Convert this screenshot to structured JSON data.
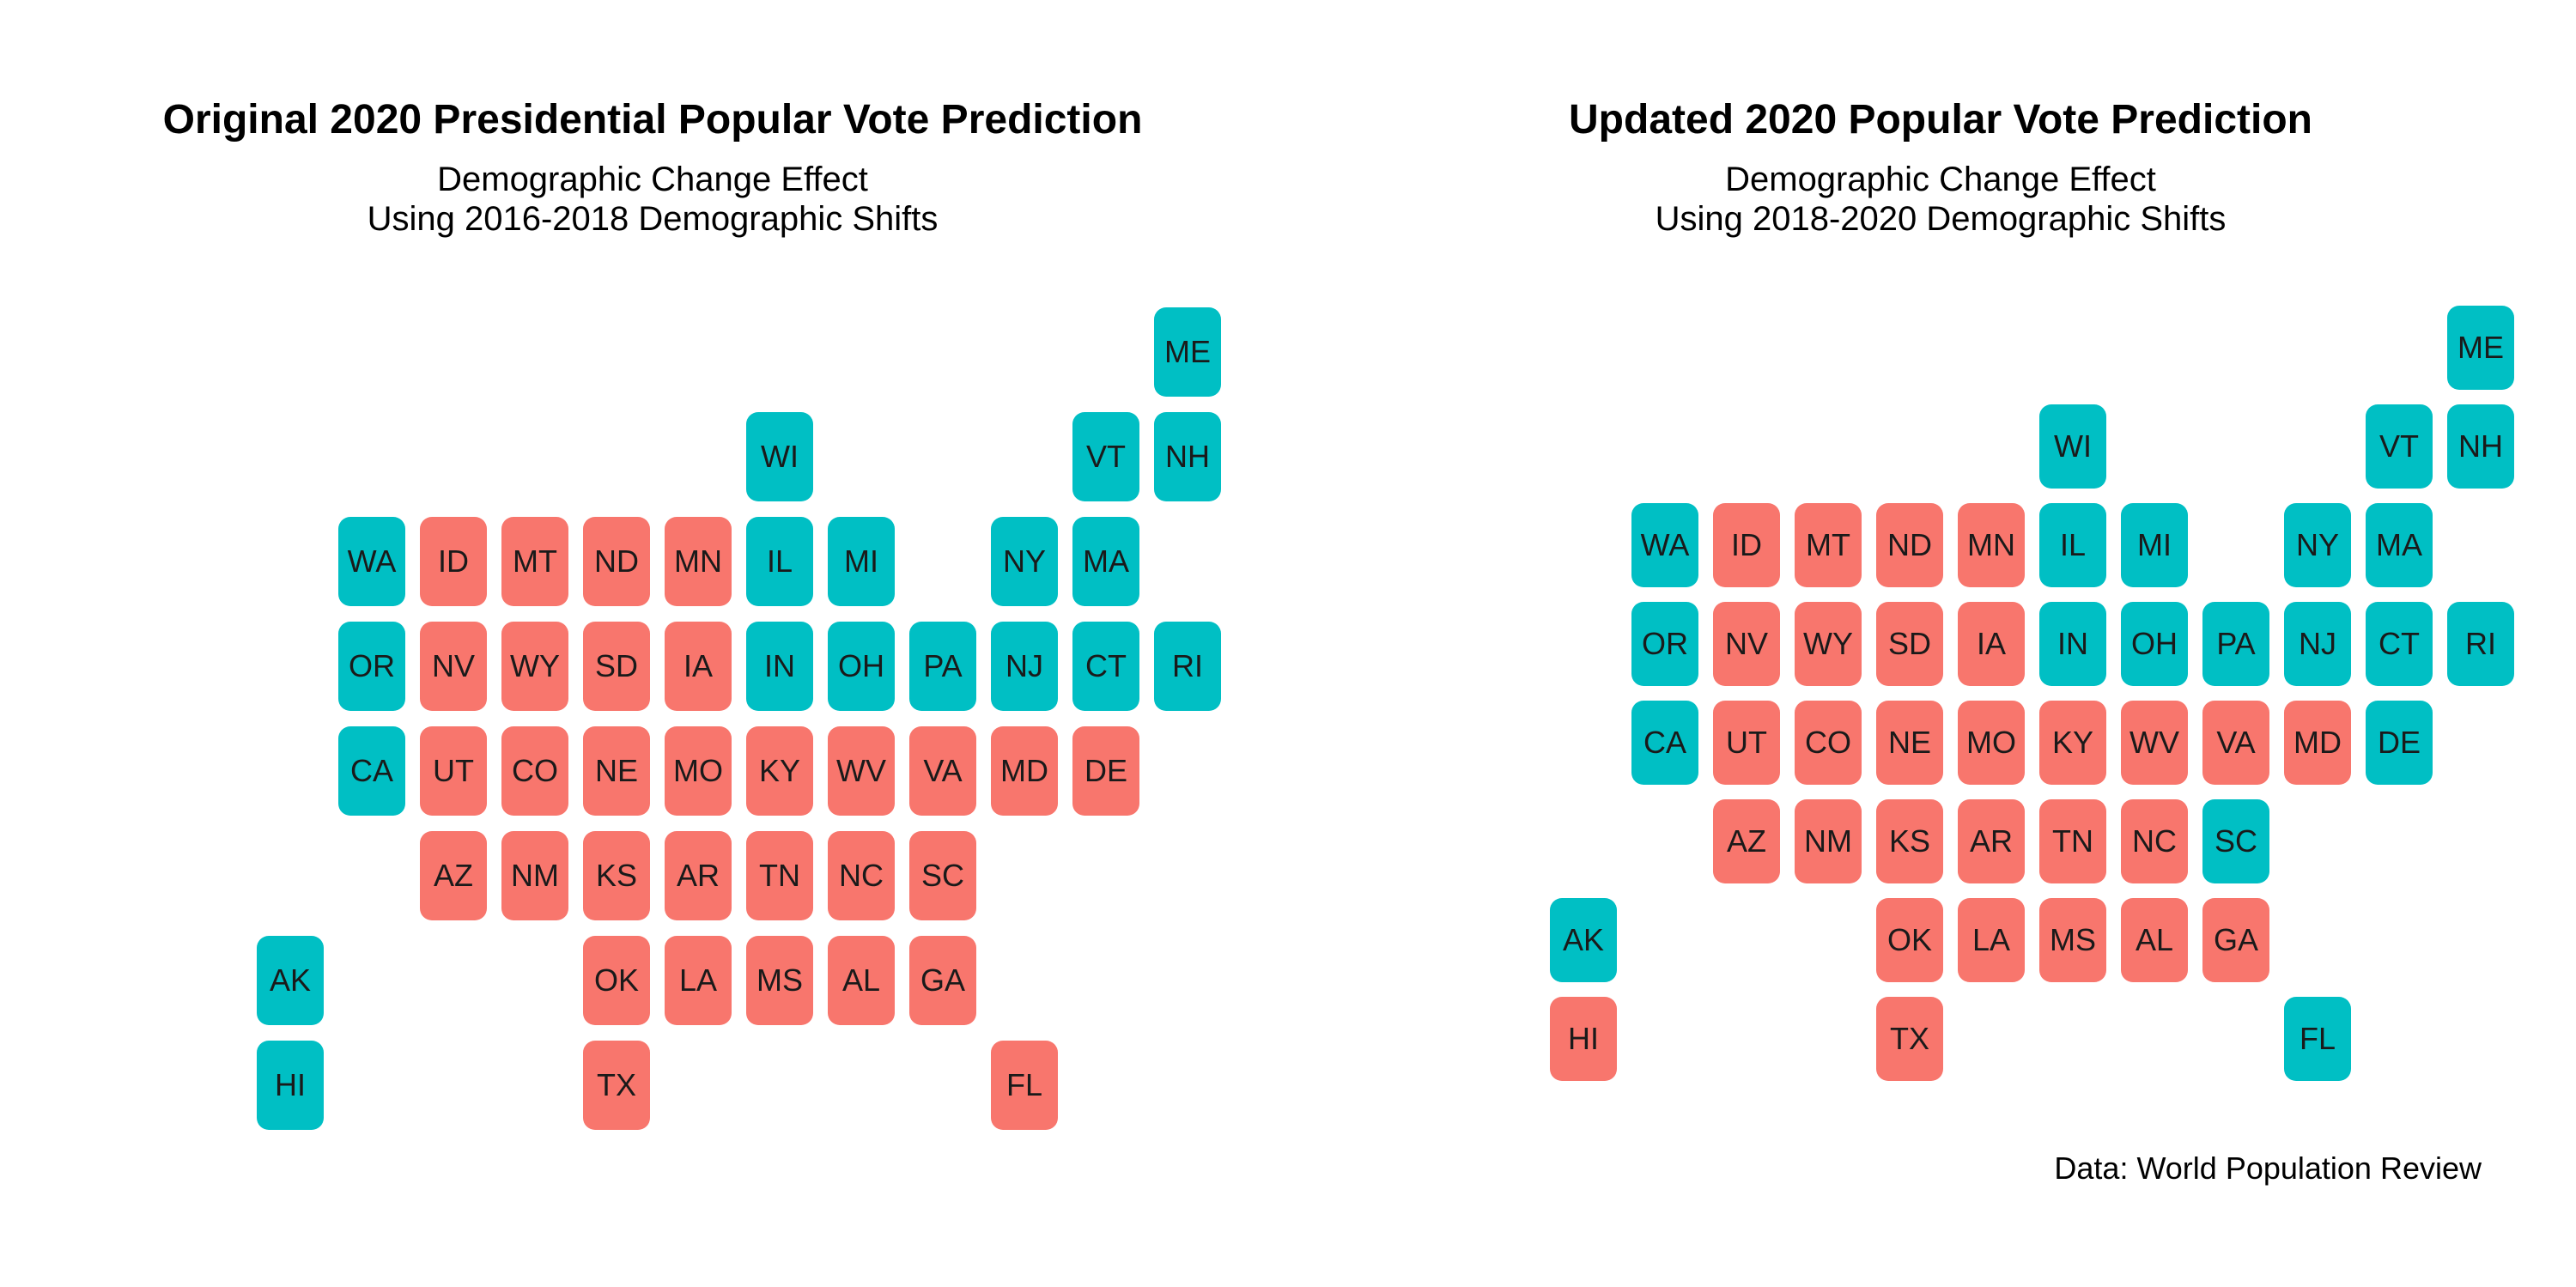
{
  "colors": {
    "red": "#F8766D",
    "teal": "#00BFC4"
  },
  "panels": [
    {
      "title": "Original 2020 Presidential Popular Vote Prediction",
      "subtitle_line1": "Demographic Change Effect",
      "subtitle_line2": "Using 2016-2018 Demographic Shifts",
      "tiles": [
        {
          "state": "ME",
          "col": 12,
          "row": 0,
          "party": "teal"
        },
        {
          "state": "WI",
          "col": 7,
          "row": 1,
          "party": "teal"
        },
        {
          "state": "VT",
          "col": 11,
          "row": 1,
          "party": "teal"
        },
        {
          "state": "NH",
          "col": 12,
          "row": 1,
          "party": "teal"
        },
        {
          "state": "WA",
          "col": 2,
          "row": 2,
          "party": "teal"
        },
        {
          "state": "ID",
          "col": 3,
          "row": 2,
          "party": "red"
        },
        {
          "state": "MT",
          "col": 4,
          "row": 2,
          "party": "red"
        },
        {
          "state": "ND",
          "col": 5,
          "row": 2,
          "party": "red"
        },
        {
          "state": "MN",
          "col": 6,
          "row": 2,
          "party": "red"
        },
        {
          "state": "IL",
          "col": 7,
          "row": 2,
          "party": "teal"
        },
        {
          "state": "MI",
          "col": 8,
          "row": 2,
          "party": "teal"
        },
        {
          "state": "NY",
          "col": 10,
          "row": 2,
          "party": "teal"
        },
        {
          "state": "MA",
          "col": 11,
          "row": 2,
          "party": "teal"
        },
        {
          "state": "OR",
          "col": 2,
          "row": 3,
          "party": "teal"
        },
        {
          "state": "NV",
          "col": 3,
          "row": 3,
          "party": "red"
        },
        {
          "state": "WY",
          "col": 4,
          "row": 3,
          "party": "red"
        },
        {
          "state": "SD",
          "col": 5,
          "row": 3,
          "party": "red"
        },
        {
          "state": "IA",
          "col": 6,
          "row": 3,
          "party": "red"
        },
        {
          "state": "IN",
          "col": 7,
          "row": 3,
          "party": "teal"
        },
        {
          "state": "OH",
          "col": 8,
          "row": 3,
          "party": "teal"
        },
        {
          "state": "PA",
          "col": 9,
          "row": 3,
          "party": "teal"
        },
        {
          "state": "NJ",
          "col": 10,
          "row": 3,
          "party": "teal"
        },
        {
          "state": "CT",
          "col": 11,
          "row": 3,
          "party": "teal"
        },
        {
          "state": "RI",
          "col": 12,
          "row": 3,
          "party": "teal"
        },
        {
          "state": "CA",
          "col": 2,
          "row": 4,
          "party": "teal"
        },
        {
          "state": "UT",
          "col": 3,
          "row": 4,
          "party": "red"
        },
        {
          "state": "CO",
          "col": 4,
          "row": 4,
          "party": "red"
        },
        {
          "state": "NE",
          "col": 5,
          "row": 4,
          "party": "red"
        },
        {
          "state": "MO",
          "col": 6,
          "row": 4,
          "party": "red"
        },
        {
          "state": "KY",
          "col": 7,
          "row": 4,
          "party": "red"
        },
        {
          "state": "WV",
          "col": 8,
          "row": 4,
          "party": "red"
        },
        {
          "state": "VA",
          "col": 9,
          "row": 4,
          "party": "red"
        },
        {
          "state": "MD",
          "col": 10,
          "row": 4,
          "party": "red"
        },
        {
          "state": "DE",
          "col": 11,
          "row": 4,
          "party": "red"
        },
        {
          "state": "AZ",
          "col": 3,
          "row": 5,
          "party": "red"
        },
        {
          "state": "NM",
          "col": 4,
          "row": 5,
          "party": "red"
        },
        {
          "state": "KS",
          "col": 5,
          "row": 5,
          "party": "red"
        },
        {
          "state": "AR",
          "col": 6,
          "row": 5,
          "party": "red"
        },
        {
          "state": "TN",
          "col": 7,
          "row": 5,
          "party": "red"
        },
        {
          "state": "NC",
          "col": 8,
          "row": 5,
          "party": "red"
        },
        {
          "state": "SC",
          "col": 9,
          "row": 5,
          "party": "red"
        },
        {
          "state": "AK",
          "col": 1,
          "row": 6,
          "party": "teal"
        },
        {
          "state": "OK",
          "col": 5,
          "row": 6,
          "party": "red"
        },
        {
          "state": "LA",
          "col": 6,
          "row": 6,
          "party": "red"
        },
        {
          "state": "MS",
          "col": 7,
          "row": 6,
          "party": "red"
        },
        {
          "state": "AL",
          "col": 8,
          "row": 6,
          "party": "red"
        },
        {
          "state": "GA",
          "col": 9,
          "row": 6,
          "party": "red"
        },
        {
          "state": "HI",
          "col": 1,
          "row": 7,
          "party": "teal"
        },
        {
          "state": "TX",
          "col": 5,
          "row": 7,
          "party": "red"
        },
        {
          "state": "FL",
          "col": 10,
          "row": 7,
          "party": "red"
        }
      ]
    },
    {
      "title": "Updated 2020 Popular Vote Prediction",
      "subtitle_line1": "Demographic Change Effect",
      "subtitle_line2": "Using 2018-2020 Demographic Shifts",
      "tiles": [
        {
          "state": "ME",
          "col": 12,
          "row": 0,
          "party": "teal"
        },
        {
          "state": "WI",
          "col": 7,
          "row": 1,
          "party": "teal"
        },
        {
          "state": "VT",
          "col": 11,
          "row": 1,
          "party": "teal"
        },
        {
          "state": "NH",
          "col": 12,
          "row": 1,
          "party": "teal"
        },
        {
          "state": "WA",
          "col": 2,
          "row": 2,
          "party": "teal"
        },
        {
          "state": "ID",
          "col": 3,
          "row": 2,
          "party": "red"
        },
        {
          "state": "MT",
          "col": 4,
          "row": 2,
          "party": "red"
        },
        {
          "state": "ND",
          "col": 5,
          "row": 2,
          "party": "red"
        },
        {
          "state": "MN",
          "col": 6,
          "row": 2,
          "party": "red"
        },
        {
          "state": "IL",
          "col": 7,
          "row": 2,
          "party": "teal"
        },
        {
          "state": "MI",
          "col": 8,
          "row": 2,
          "party": "teal"
        },
        {
          "state": "NY",
          "col": 10,
          "row": 2,
          "party": "teal"
        },
        {
          "state": "MA",
          "col": 11,
          "row": 2,
          "party": "teal"
        },
        {
          "state": "OR",
          "col": 2,
          "row": 3,
          "party": "teal"
        },
        {
          "state": "NV",
          "col": 3,
          "row": 3,
          "party": "red"
        },
        {
          "state": "WY",
          "col": 4,
          "row": 3,
          "party": "red"
        },
        {
          "state": "SD",
          "col": 5,
          "row": 3,
          "party": "red"
        },
        {
          "state": "IA",
          "col": 6,
          "row": 3,
          "party": "red"
        },
        {
          "state": "IN",
          "col": 7,
          "row": 3,
          "party": "teal"
        },
        {
          "state": "OH",
          "col": 8,
          "row": 3,
          "party": "teal"
        },
        {
          "state": "PA",
          "col": 9,
          "row": 3,
          "party": "teal"
        },
        {
          "state": "NJ",
          "col": 10,
          "row": 3,
          "party": "teal"
        },
        {
          "state": "CT",
          "col": 11,
          "row": 3,
          "party": "teal"
        },
        {
          "state": "RI",
          "col": 12,
          "row": 3,
          "party": "teal"
        },
        {
          "state": "CA",
          "col": 2,
          "row": 4,
          "party": "teal"
        },
        {
          "state": "UT",
          "col": 3,
          "row": 4,
          "party": "red"
        },
        {
          "state": "CO",
          "col": 4,
          "row": 4,
          "party": "red"
        },
        {
          "state": "NE",
          "col": 5,
          "row": 4,
          "party": "red"
        },
        {
          "state": "MO",
          "col": 6,
          "row": 4,
          "party": "red"
        },
        {
          "state": "KY",
          "col": 7,
          "row": 4,
          "party": "red"
        },
        {
          "state": "WV",
          "col": 8,
          "row": 4,
          "party": "red"
        },
        {
          "state": "VA",
          "col": 9,
          "row": 4,
          "party": "red"
        },
        {
          "state": "MD",
          "col": 10,
          "row": 4,
          "party": "red"
        },
        {
          "state": "DE",
          "col": 11,
          "row": 4,
          "party": "teal"
        },
        {
          "state": "AZ",
          "col": 3,
          "row": 5,
          "party": "red"
        },
        {
          "state": "NM",
          "col": 4,
          "row": 5,
          "party": "red"
        },
        {
          "state": "KS",
          "col": 5,
          "row": 5,
          "party": "red"
        },
        {
          "state": "AR",
          "col": 6,
          "row": 5,
          "party": "red"
        },
        {
          "state": "TN",
          "col": 7,
          "row": 5,
          "party": "red"
        },
        {
          "state": "NC",
          "col": 8,
          "row": 5,
          "party": "red"
        },
        {
          "state": "SC",
          "col": 9,
          "row": 5,
          "party": "teal"
        },
        {
          "state": "AK",
          "col": 1,
          "row": 6,
          "party": "teal"
        },
        {
          "state": "OK",
          "col": 5,
          "row": 6,
          "party": "red"
        },
        {
          "state": "LA",
          "col": 6,
          "row": 6,
          "party": "red"
        },
        {
          "state": "MS",
          "col": 7,
          "row": 6,
          "party": "red"
        },
        {
          "state": "AL",
          "col": 8,
          "row": 6,
          "party": "red"
        },
        {
          "state": "GA",
          "col": 9,
          "row": 6,
          "party": "red"
        },
        {
          "state": "HI",
          "col": 1,
          "row": 7,
          "party": "red"
        },
        {
          "state": "TX",
          "col": 5,
          "row": 7,
          "party": "red"
        },
        {
          "state": "FL",
          "col": 10,
          "row": 7,
          "party": "teal"
        }
      ]
    }
  ],
  "caption": "Data: World Population Review"
}
